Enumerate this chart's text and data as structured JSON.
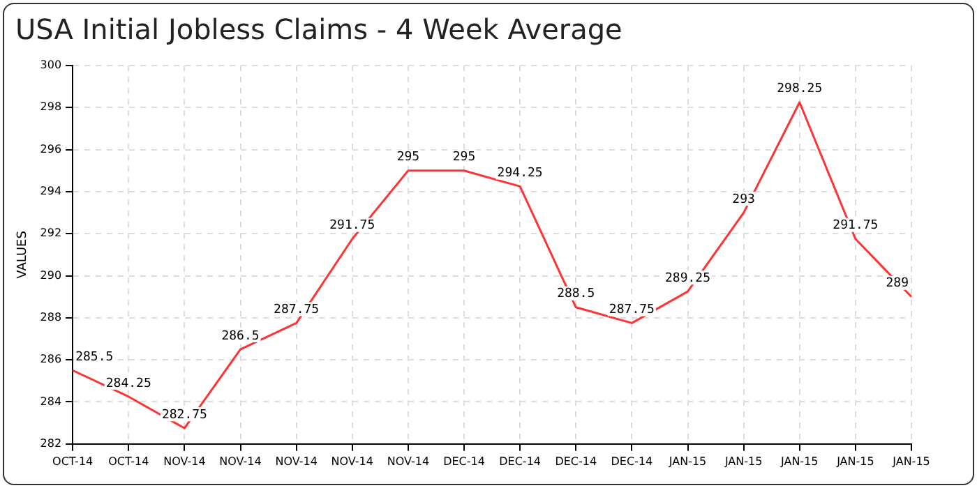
{
  "chart_data": {
    "type": "line",
    "title": "USA Initial Jobless Claims - 4 Week Average",
    "ylabel": "VALUES",
    "categories": [
      "OCT-14",
      "OCT-14",
      "NOV-14",
      "NOV-14",
      "NOV-14",
      "NOV-14",
      "NOV-14",
      "DEC-14",
      "DEC-14",
      "DEC-14",
      "DEC-14",
      "JAN-15",
      "JAN-15",
      "JAN-15",
      "JAN-15",
      "JAN-15"
    ],
    "series": [
      {
        "color": "#ff3333",
        "values": [
          285.5,
          284.25,
          282.75,
          286.5,
          287.75,
          291.75,
          295,
          295,
          294.25,
          288.5,
          287.75,
          289.25,
          293,
          298.25,
          291.75,
          289
        ]
      }
    ],
    "ylim": [
      282,
      300
    ],
    "yticks": [
      282,
      284,
      286,
      288,
      290,
      292,
      294,
      296,
      298,
      300
    ],
    "grid": true,
    "legend": false,
    "marker": "none",
    "line_style": "solid",
    "data_labels": true
  }
}
